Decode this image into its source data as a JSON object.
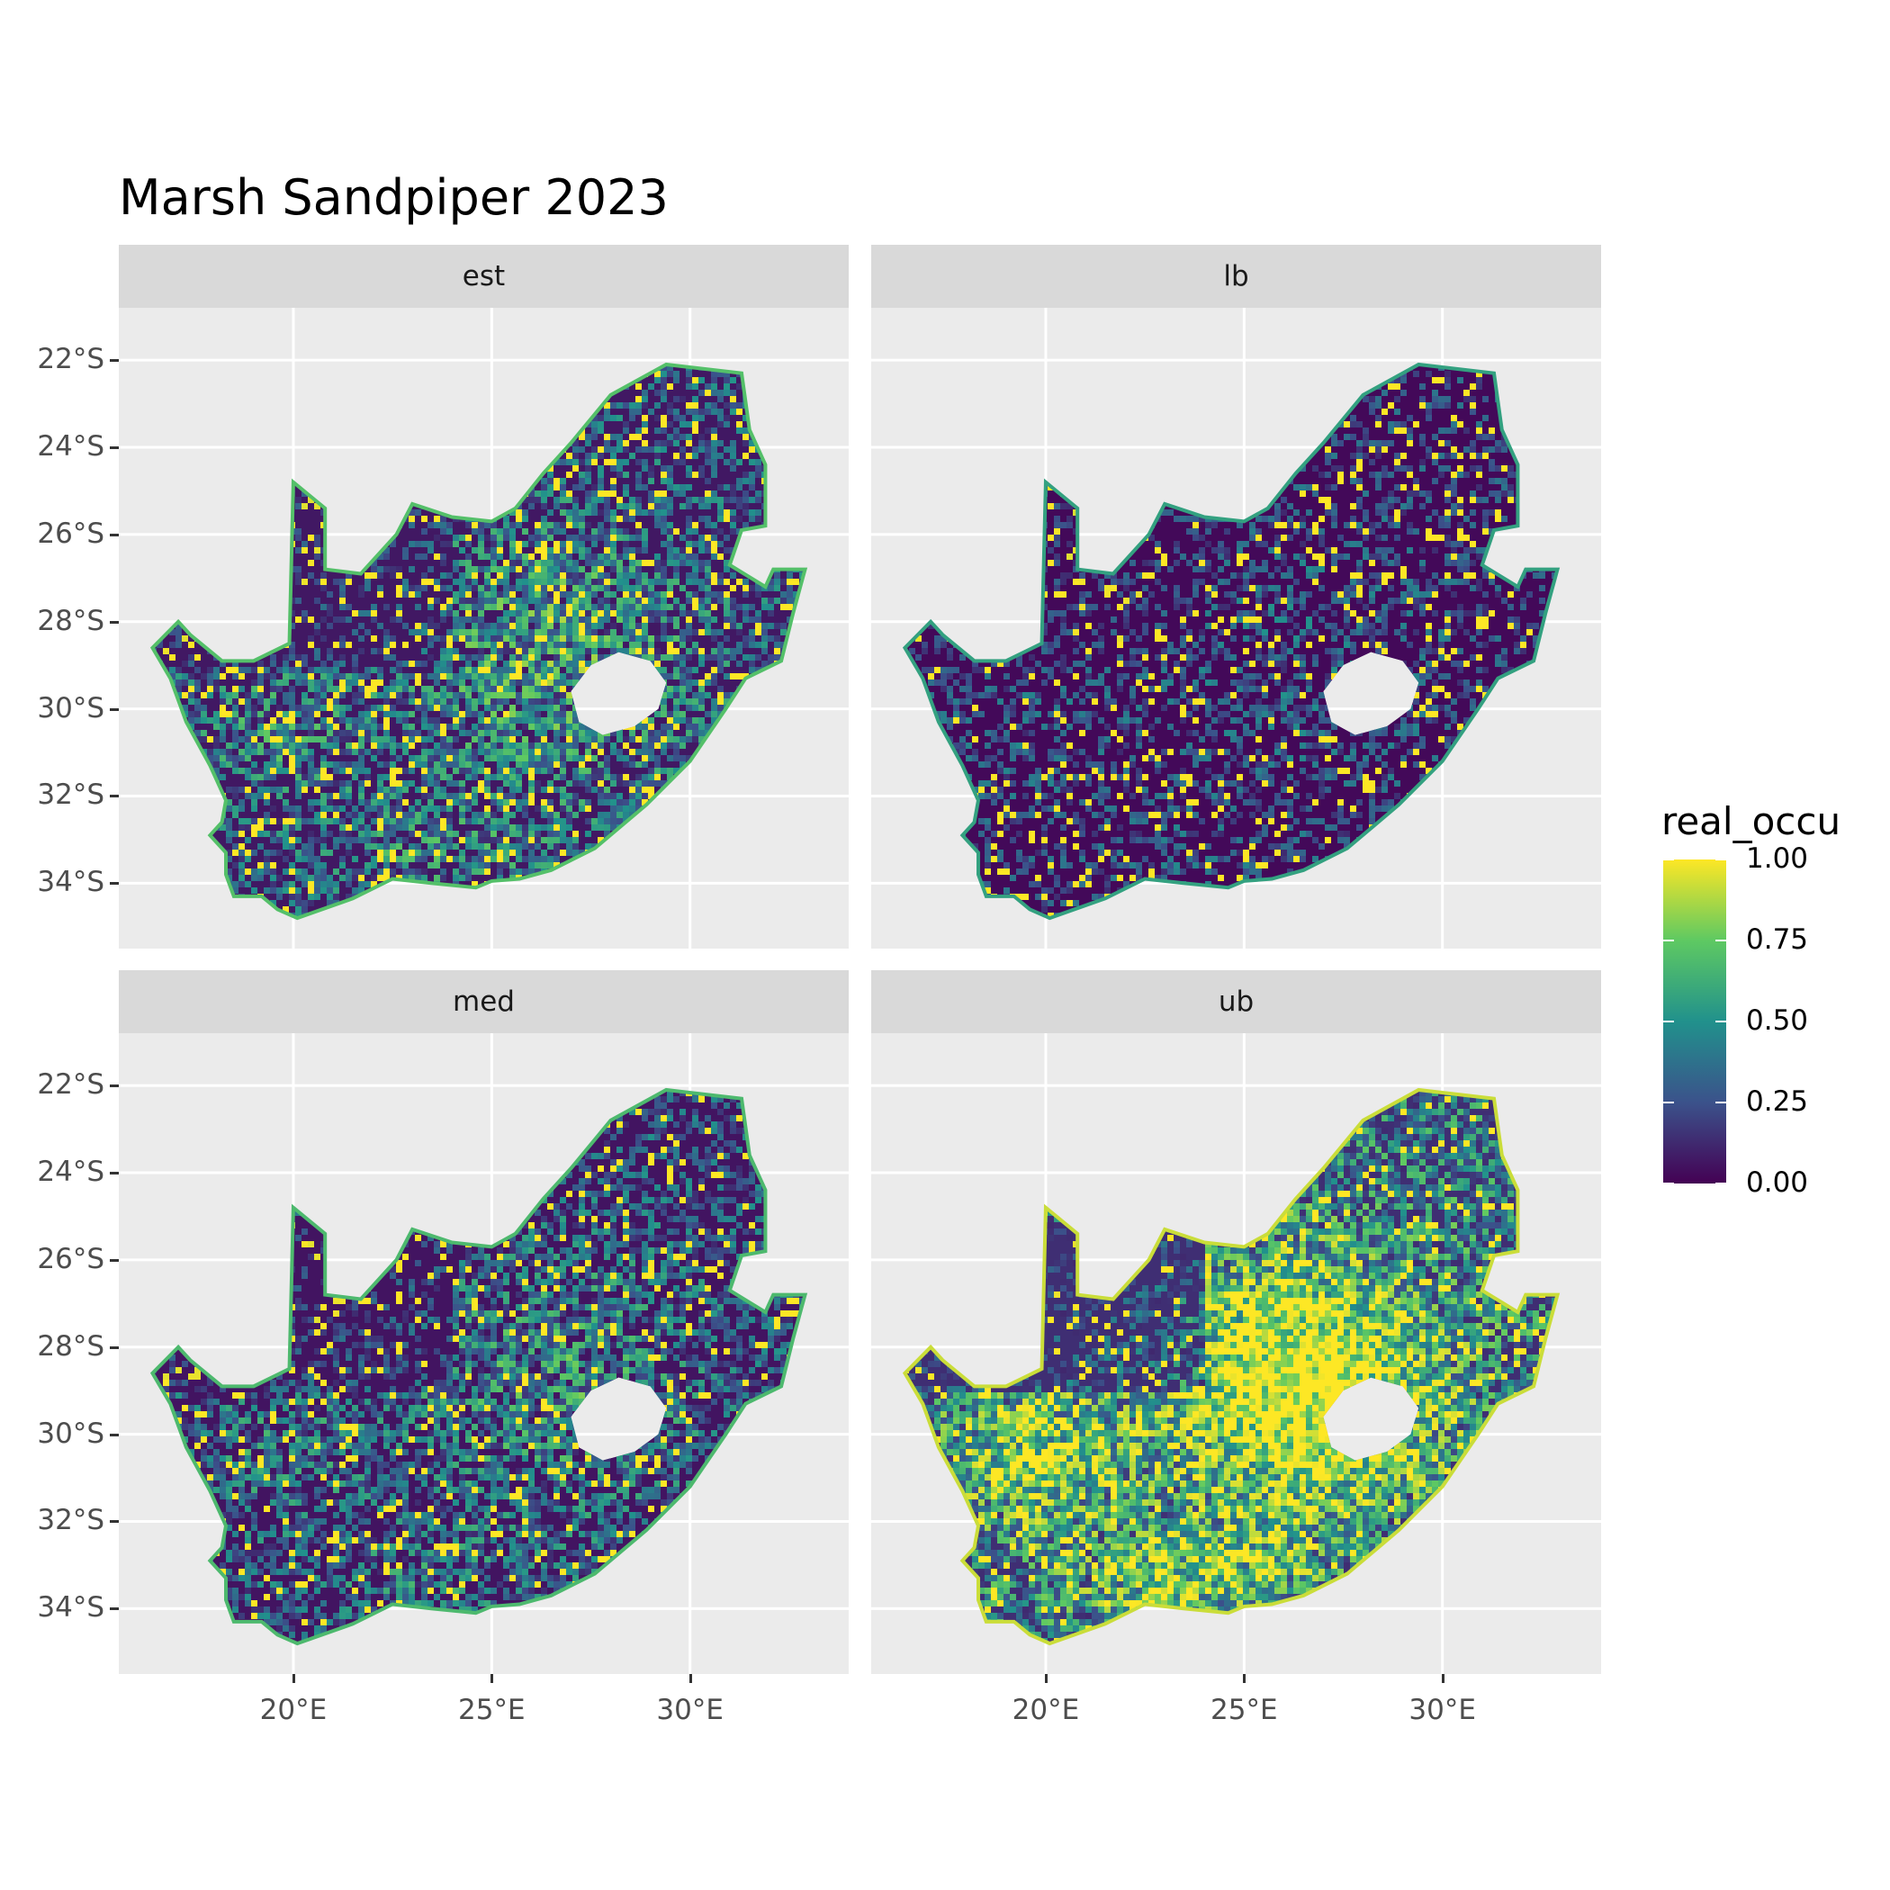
{
  "title": "Marsh Sandpiper 2023",
  "panels": [
    {
      "label": "est",
      "occupancy_level": 0.35
    },
    {
      "label": "lb",
      "occupancy_level": 0.12
    },
    {
      "label": "med",
      "occupancy_level": 0.3
    },
    {
      "label": "ub",
      "occupancy_level": 0.7
    }
  ],
  "y_ticks": [
    "22°S",
    "24°S",
    "26°S",
    "28°S",
    "30°S",
    "32°S",
    "34°S"
  ],
  "x_ticks": [
    "20°E",
    "25°E",
    "30°E"
  ],
  "legend": {
    "title": "real_occu",
    "labels": [
      "1.00",
      "0.75",
      "0.50",
      "0.25",
      "0.00"
    ],
    "colors": [
      "#440154",
      "#3b528b",
      "#21918c",
      "#5ec962",
      "#fde725"
    ]
  },
  "colors": {
    "panel_bg": "#ebebeb",
    "grid": "#ffffff",
    "strip_bg": "#d9d9d9"
  }
}
